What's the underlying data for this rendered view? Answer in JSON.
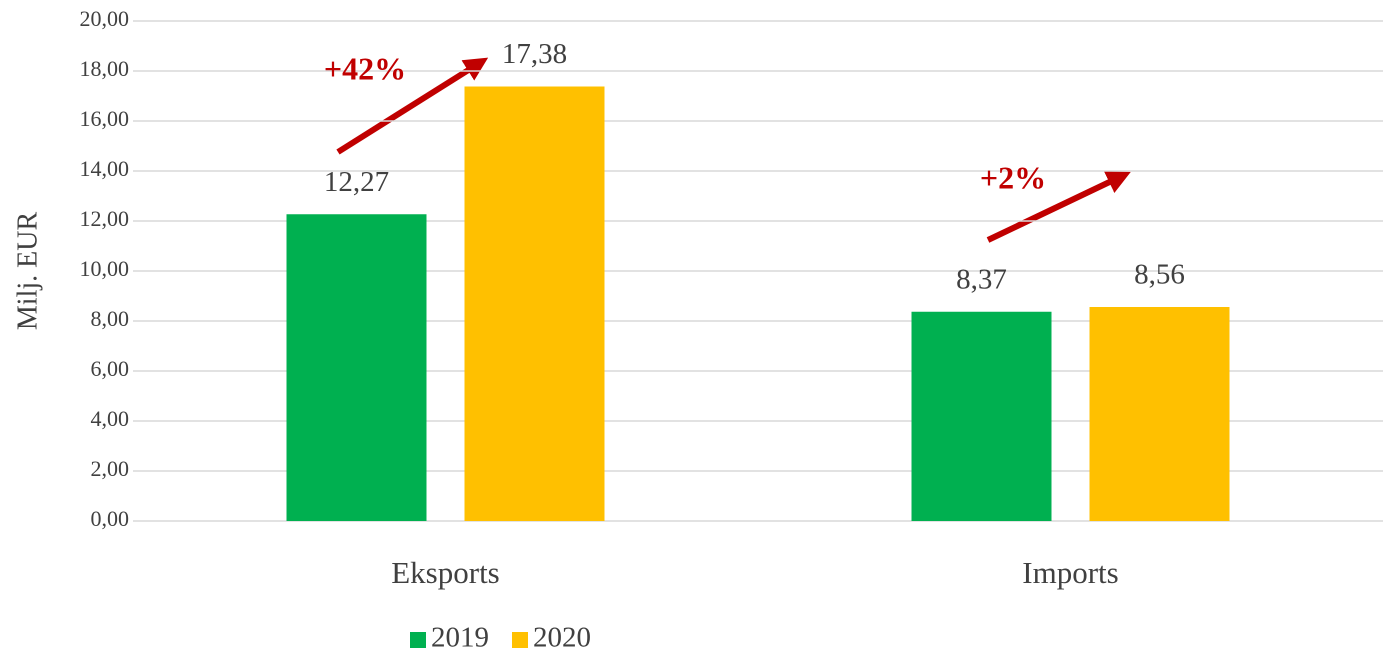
{
  "chart_data": {
    "type": "bar",
    "ylabel": "Milj. EUR",
    "categories": [
      "Eksports",
      "Imports"
    ],
    "series": [
      {
        "name": "2019",
        "color": "#00b050",
        "values": [
          12.27,
          8.37
        ],
        "value_labels": [
          "12,27",
          "8,37"
        ]
      },
      {
        "name": "2020",
        "color": "#ffc000",
        "values": [
          17.38,
          8.56
        ],
        "value_labels": [
          "17,38",
          "8,56"
        ]
      }
    ],
    "ylim": [
      0,
      20
    ],
    "yticks": [
      {
        "value": 0,
        "label": "0,00"
      },
      {
        "value": 2,
        "label": "2,00"
      },
      {
        "value": 4,
        "label": "4,00"
      },
      {
        "value": 6,
        "label": "6,00"
      },
      {
        "value": 8,
        "label": "8,00"
      },
      {
        "value": 10,
        "label": "10,00"
      },
      {
        "value": 12,
        "label": "12,00"
      },
      {
        "value": 14,
        "label": "14,00"
      },
      {
        "value": 16,
        "label": "16,00"
      },
      {
        "value": 18,
        "label": "18,00"
      },
      {
        "value": 20,
        "label": "20,00"
      }
    ],
    "grid": true,
    "legend": "bottom",
    "annotations": [
      "+42%",
      "+2%"
    ]
  }
}
